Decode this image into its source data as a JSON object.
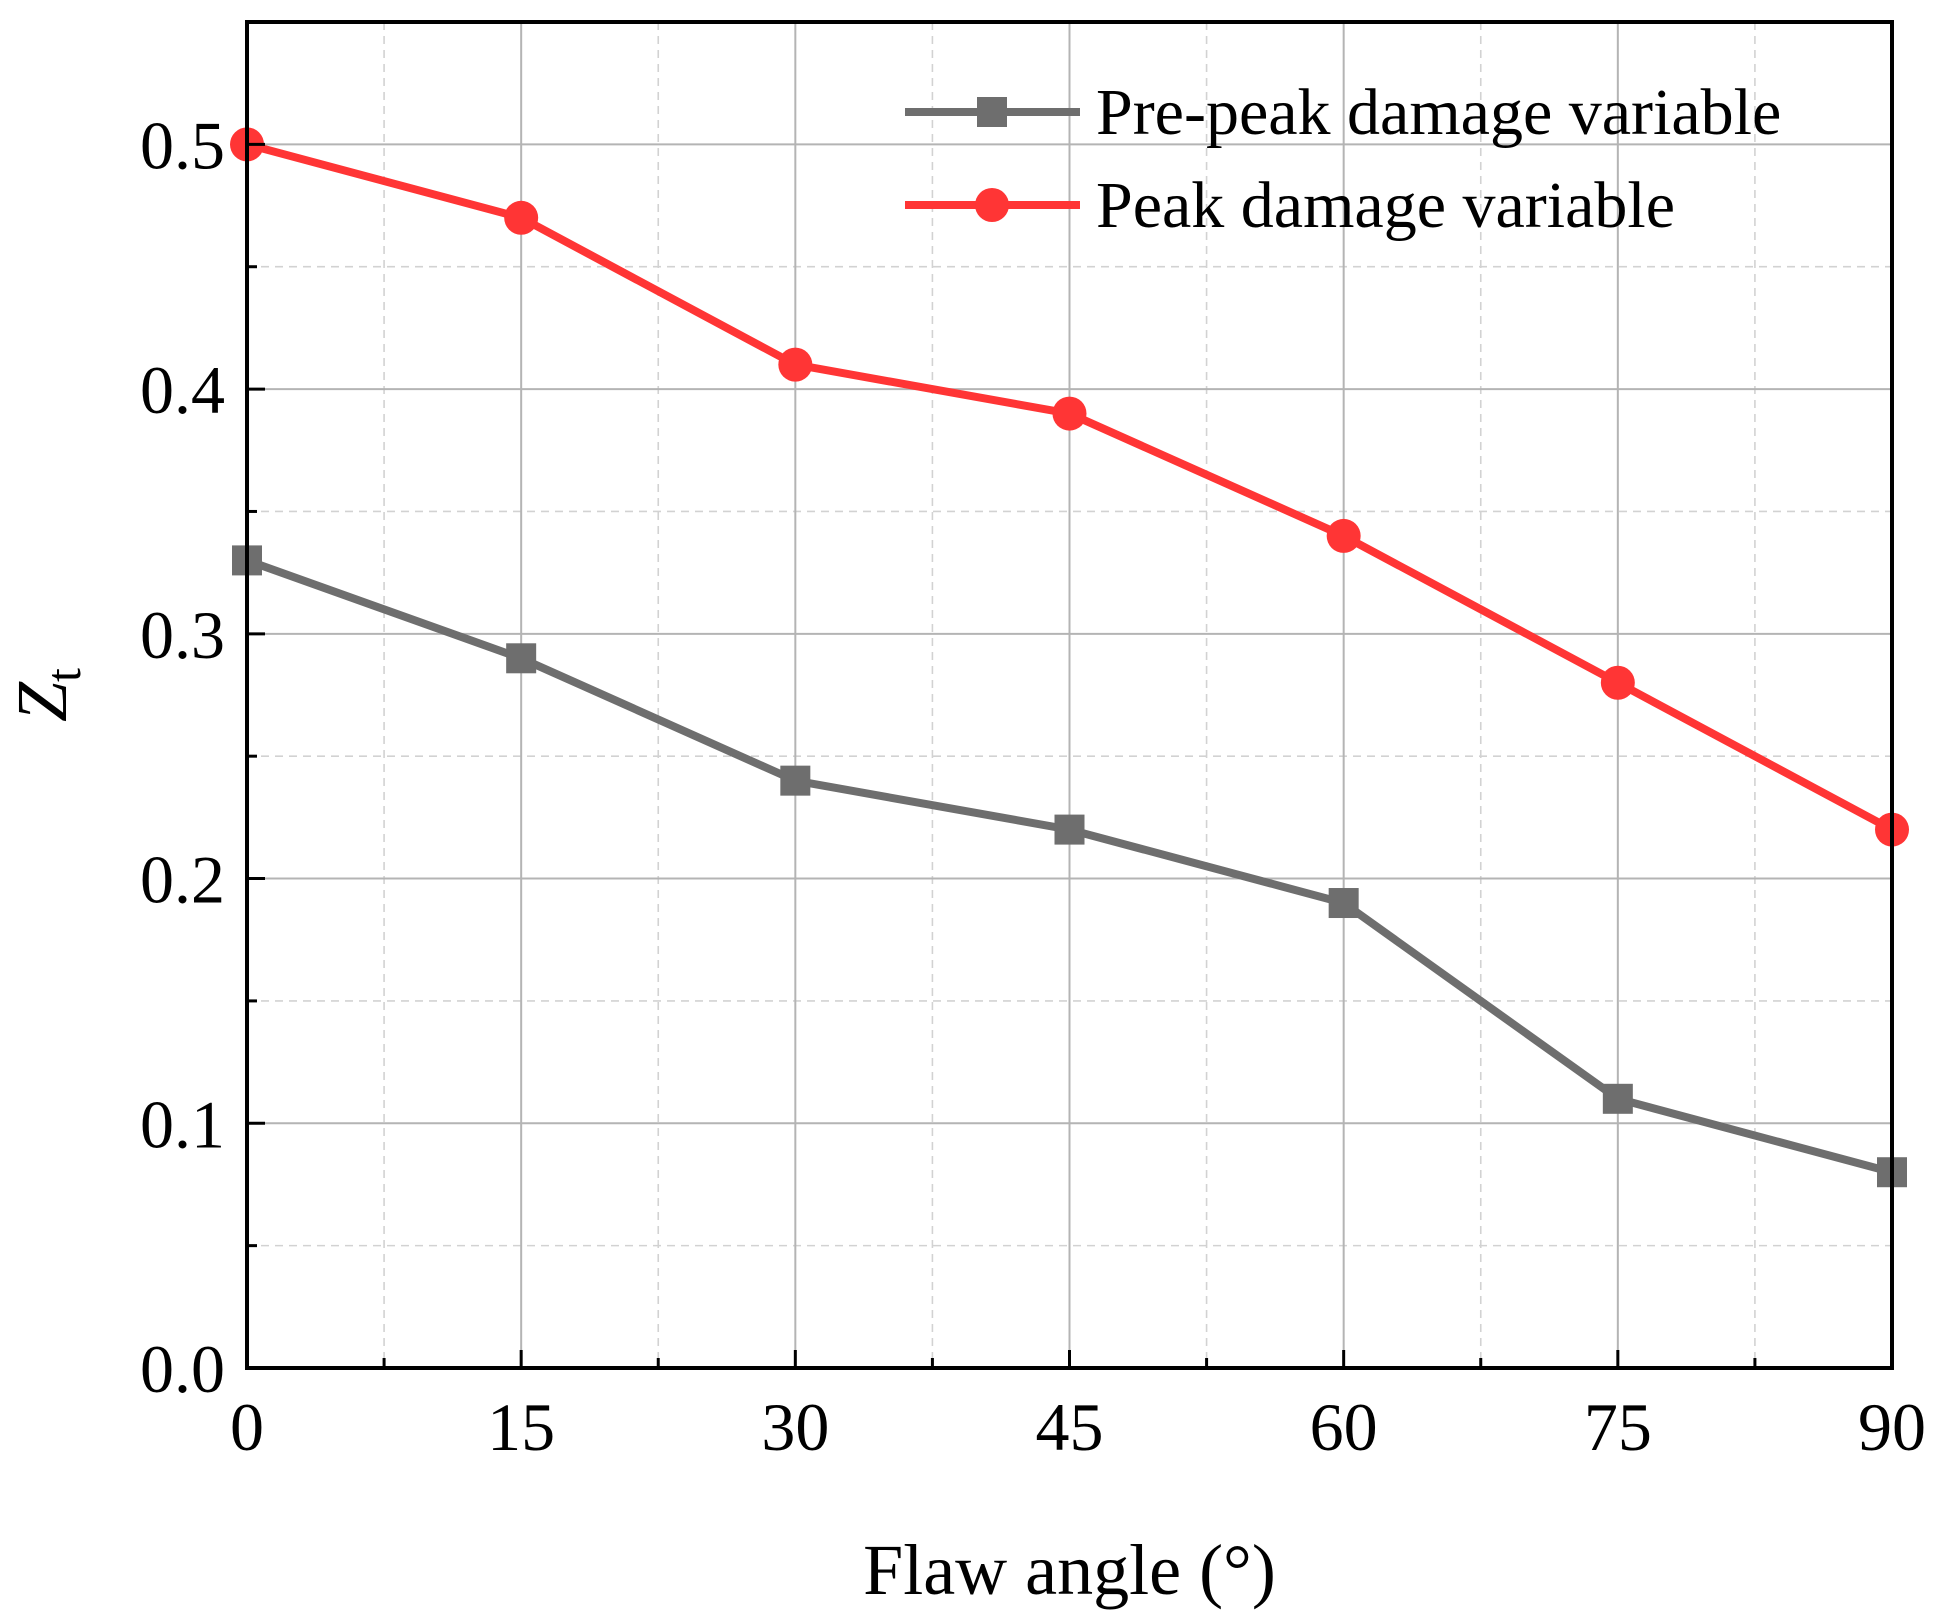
{
  "chart_data": {
    "type": "line",
    "title": "",
    "xlabel": "Flaw angle (°)",
    "ylabel_main": "Z",
    "ylabel_sub": "t",
    "x": [
      0,
      15,
      30,
      45,
      60,
      75,
      90
    ],
    "x_ticks": [
      "0",
      "15",
      "30",
      "45",
      "60",
      "75",
      "90"
    ],
    "y_ticks": [
      "0.0",
      "0.1",
      "0.2",
      "0.3",
      "0.4",
      "0.5"
    ],
    "xlim": [
      0,
      90
    ],
    "ylim": [
      0,
      0.55
    ],
    "grid": true,
    "legend_position": "top-right",
    "series": [
      {
        "name": "Pre-peak damage variable",
        "marker": "square",
        "color": "#6e6e6e",
        "values": [
          0.33,
          0.29,
          0.24,
          0.22,
          0.19,
          0.11,
          0.08
        ]
      },
      {
        "name": "Peak damage variable",
        "marker": "circle",
        "color": "#ff3535",
        "values": [
          0.5,
          0.47,
          0.41,
          0.39,
          0.34,
          0.28,
          0.22
        ]
      }
    ]
  }
}
